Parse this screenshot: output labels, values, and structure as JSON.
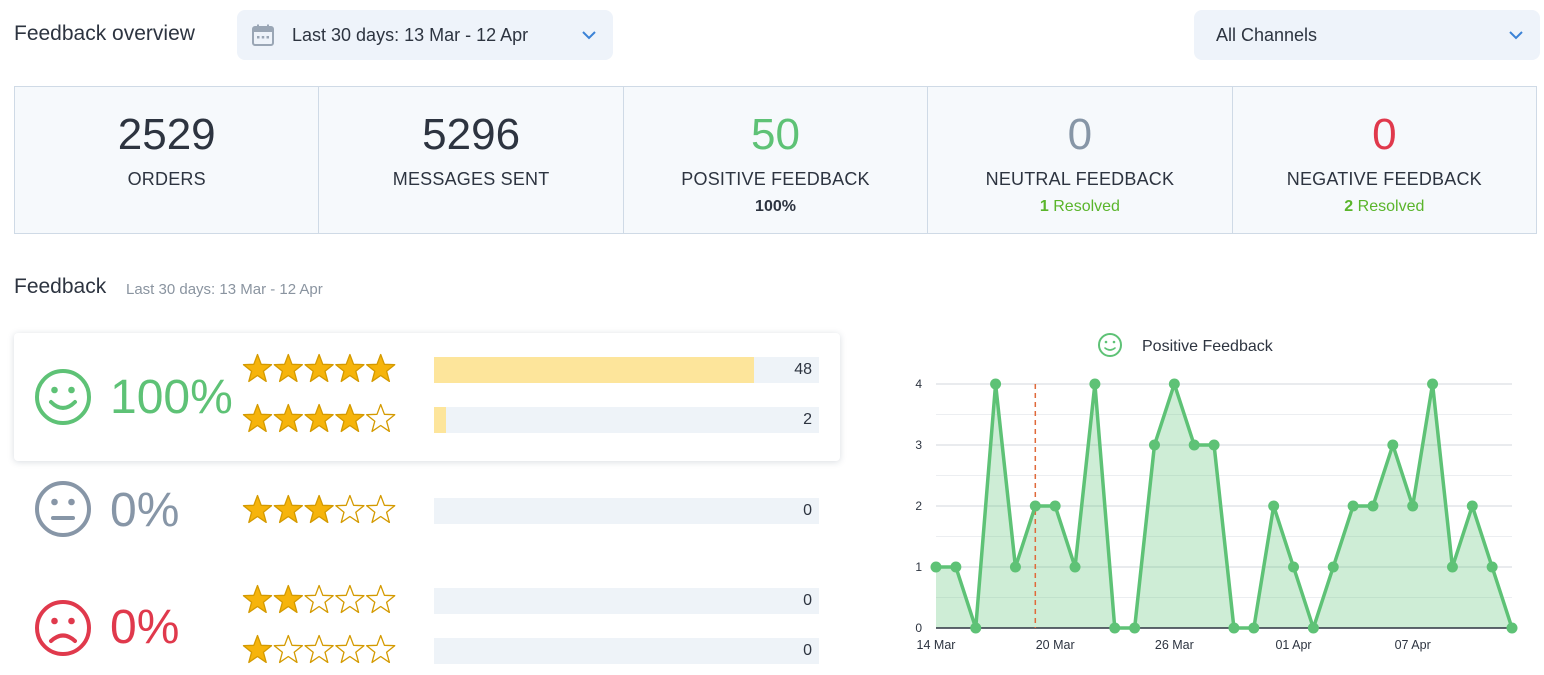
{
  "header": {
    "title": "Feedback overview",
    "date_range": "Last 30 days: 13 Mar - 12 Apr",
    "channel": "All Channels"
  },
  "stats": [
    {
      "value": "2529",
      "label": "ORDERS",
      "color": "#2d3440"
    },
    {
      "value": "5296",
      "label": "MESSAGES SENT",
      "color": "#2d3440"
    },
    {
      "value": "50",
      "label": "POSITIVE FEEDBACK",
      "sub": "100%",
      "color": "#5ec276"
    },
    {
      "value": "0",
      "label": "NEUTRAL FEEDBACK",
      "resolved_count": "1",
      "resolved_label": "Resolved",
      "color": "#8796a7"
    },
    {
      "value": "0",
      "label": "NEGATIVE FEEDBACK",
      "resolved_count": "2",
      "resolved_label": "Resolved",
      "color": "#e0394c"
    }
  ],
  "feedback": {
    "title": "Feedback",
    "subtitle": "Last 30 days: 13 Mar - 12 Apr",
    "positive": {
      "percent": "100%",
      "color": "#5ec276"
    },
    "neutral": {
      "percent": "0%",
      "color": "#8796a7"
    },
    "negative": {
      "percent": "0%",
      "color": "#e0394c"
    },
    "ratings": [
      {
        "stars": 5,
        "count": "48",
        "fill_fraction": 0.83
      },
      {
        "stars": 4,
        "count": "2",
        "fill_fraction": 0.03
      },
      {
        "stars": 3,
        "count": "0",
        "fill_fraction": 0
      },
      {
        "stars": 2,
        "count": "0",
        "fill_fraction": 0
      },
      {
        "stars": 1,
        "count": "0",
        "fill_fraction": 0
      }
    ]
  },
  "chart_data": {
    "type": "area",
    "series": [
      {
        "name": "Positive Feedback",
        "color": "#5ec276",
        "values": [
          1,
          1,
          0,
          4,
          1,
          2,
          2,
          1,
          4,
          0,
          0,
          3,
          4,
          3,
          3,
          0,
          0,
          2,
          1,
          0,
          1,
          2,
          2,
          3,
          2,
          4,
          1,
          2,
          1,
          0
        ]
      }
    ],
    "x_tick_labels": [
      "14 Mar",
      "20 Mar",
      "26 Mar",
      "01 Apr",
      "07 Apr"
    ],
    "x_tick_index": [
      0,
      6,
      12,
      18,
      24
    ],
    "y_ticks": [
      0,
      1,
      2,
      3,
      4
    ],
    "ylim": [
      0,
      4
    ],
    "marker_index": 5,
    "legend": "top-center",
    "grid": true
  }
}
